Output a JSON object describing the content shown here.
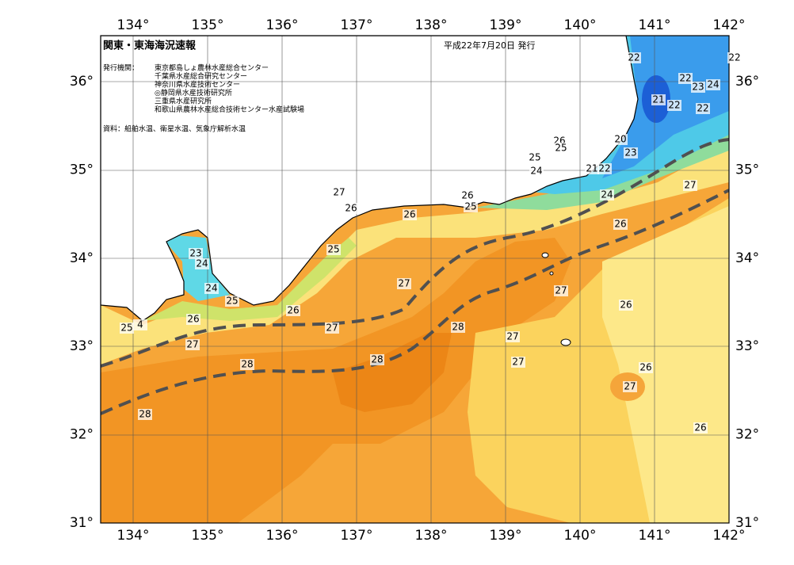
{
  "header": {
    "title": "関東・東海海況速報",
    "date": "平成22年7月20日 発行",
    "issuer_label": "発行機関：",
    "issuers": [
      "東京都島しょ農林水産総合センター",
      "千葉県水産総合研究センター",
      "神奈川県水産技術センター",
      "◎静岡県水産技術研究所",
      "三重県水産研究所",
      "和歌山県農林水産総合技術センター水産試験場"
    ],
    "source": "資料：船舶水温、衛星水温、気象庁解析水温"
  },
  "lon_labels": [
    "134°",
    "135°",
    "136°",
    "137°",
    "138°",
    "139°",
    "140°",
    "141°",
    "142°"
  ],
  "lat_labels": [
    "31°",
    "32°",
    "33°",
    "34°",
    "35°",
    "36°"
  ],
  "isotherm_labels": [
    22,
    22,
    22,
    23,
    24,
    21,
    22,
    22,
    26,
    25,
    20,
    23,
    25,
    24,
    21,
    22,
    27,
    26,
    26,
    25,
    26,
    24,
    27,
    26,
    23,
    24,
    25,
    27,
    27,
    24,
    25,
    26,
    26,
    26,
    25,
    4,
    27,
    28,
    27,
    27,
    27,
    28,
    28,
    26,
    27,
    28,
    26
  ]
}
